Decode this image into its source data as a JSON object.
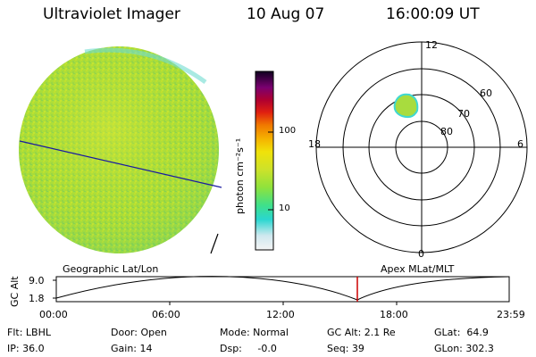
{
  "header": {
    "instrument": "Ultraviolet Imager",
    "date": "10 Aug 07",
    "time": "16:00:09  UT"
  },
  "colorbar": {
    "unit_label": "photon cm⁻²s⁻¹",
    "tick_100": "100",
    "tick_10": "10"
  },
  "polar_plot": {
    "mlt_top": "12",
    "mlt_left": "18",
    "mlt_right": "6",
    "mlt_bottom": "0",
    "lat_60": "60",
    "lat_70": "70",
    "lat_80": "80"
  },
  "left_panel_label": "Geographic Lat/Lon",
  "right_panel_label": "Apex  MLat/MLT",
  "altitude_plot": {
    "ylabel": "GC Alt",
    "ytick_top": "9.0",
    "ytick_bottom": "1.8",
    "xticks": [
      "00:00",
      "06:00",
      "12:00",
      "18:00",
      "23:59"
    ],
    "current_marker_color": "#cc0000"
  },
  "status": {
    "filter_label": "Flt: LBHL",
    "ip_label": "IP: 36.0",
    "door_label": "Door: Open",
    "gain_label": "Gain: 14",
    "mode_label": "Mode: Normal",
    "dsp_label": "Dsp:     -0.0",
    "gcalt_label": "GC Alt: 2.1 Re",
    "seq_label": "Seq: 39",
    "glat_label": "GLat:  64.9",
    "glon_label": "GLon: 302.3"
  }
}
